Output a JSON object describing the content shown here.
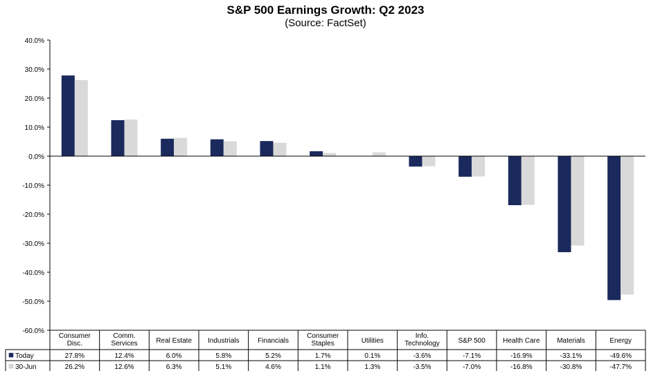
{
  "chart_data": {
    "type": "bar",
    "title": "S&P 500 Earnings Growth: Q2 2023",
    "subtitle": "(Source: FactSet)",
    "categories": [
      [
        "Consumer",
        "Disc."
      ],
      [
        "Comm.",
        "Services"
      ],
      [
        "Real Estate"
      ],
      [
        "Industrials"
      ],
      [
        "Financials"
      ],
      [
        "Consumer",
        "Staples"
      ],
      [
        "Utilities"
      ],
      [
        "Info.",
        "Technology"
      ],
      [
        "S&P 500"
      ],
      [
        "Health Care"
      ],
      [
        "Materials"
      ],
      [
        "Energy"
      ]
    ],
    "series": [
      {
        "name": "Today",
        "color": "#1b2a5c",
        "values": [
          27.8,
          12.4,
          6.0,
          5.8,
          5.2,
          1.7,
          0.1,
          -3.6,
          -7.1,
          -16.9,
          -33.1,
          -49.6
        ],
        "labels": [
          "27.8%",
          "12.4%",
          "6.0%",
          "5.8%",
          "5.2%",
          "1.7%",
          "0.1%",
          "-3.6%",
          "-7.1%",
          "-16.9%",
          "-33.1%",
          "-49.6%"
        ]
      },
      {
        "name": "30-Jun",
        "color": "#d9d9d9",
        "values": [
          26.2,
          12.6,
          6.3,
          5.1,
          4.6,
          1.1,
          1.3,
          -3.5,
          -7.0,
          -16.8,
          -30.8,
          -47.7
        ],
        "labels": [
          "26.2%",
          "12.6%",
          "6.3%",
          "5.1%",
          "4.6%",
          "1.1%",
          "1.3%",
          "-3.5%",
          "-7.0%",
          "-16.8%",
          "-30.8%",
          "-47.7%"
        ]
      }
    ],
    "ylim": [
      -60,
      40
    ],
    "yticks": [
      40,
      30,
      20,
      10,
      0,
      -10,
      -20,
      -30,
      -40,
      -50,
      -60
    ],
    "ytick_labels": [
      "40.0%",
      "30.0%",
      "20.0%",
      "10.0%",
      "0.0%",
      "-10.0%",
      "-20.0%",
      "-30.0%",
      "-40.0%",
      "-50.0%",
      "-60.0%"
    ],
    "grid": false,
    "legend": "data-table"
  }
}
